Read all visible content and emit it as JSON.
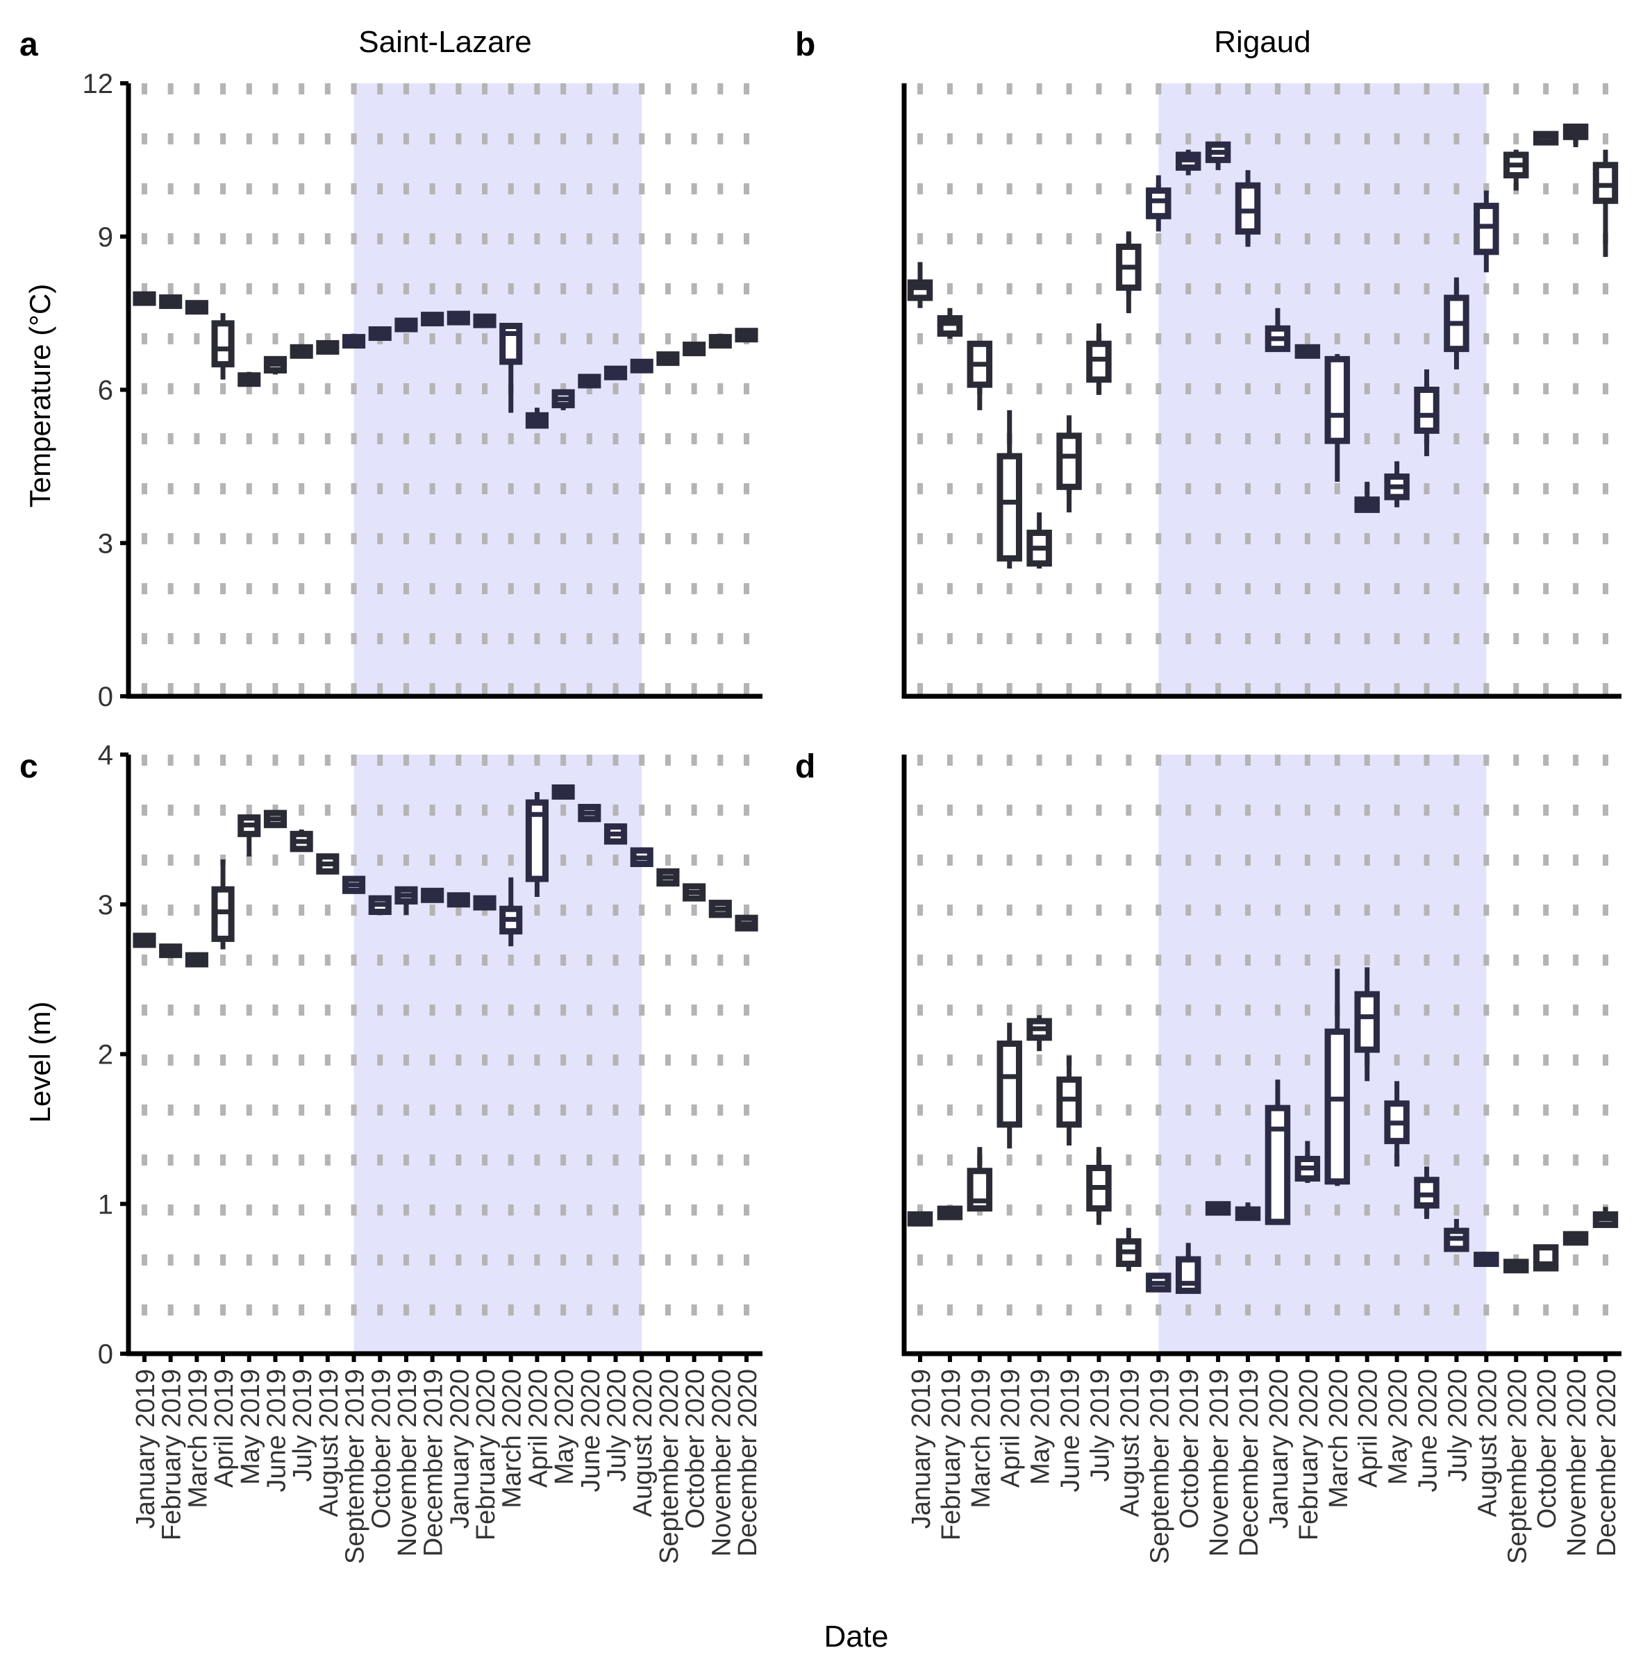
{
  "figure": {
    "xlabel": "Date",
    "shared_ylabels": {
      "top": "Temperature (°C)",
      "bottom": "Level (m)"
    }
  },
  "colors": {
    "shade": "#e3e4fb",
    "box": "#2b2b36",
    "box_shaded": "#2b2b45",
    "grid": "#b4b4b4",
    "axis": "#000000"
  },
  "chart_data": [
    {
      "panel": "a",
      "title": "Saint-Lazare",
      "type": "box",
      "ylabel": "Temperature (°C)",
      "ylim": [
        0,
        12
      ],
      "yticks": [
        0,
        3,
        6,
        9,
        12
      ],
      "shaded_range": [
        "September 2019",
        "August 2020"
      ],
      "categories": [
        "January 2019",
        "February 2019",
        "March 2019",
        "April 2019",
        "May 2019",
        "June 2019",
        "July 2019",
        "August 2019",
        "September 2019",
        "October 2019",
        "November 2019",
        "December 2019",
        "January 2020",
        "February 2020",
        "March 2020",
        "April 2020",
        "May 2020",
        "June 2020",
        "July 2020",
        "August 2020",
        "September 2020",
        "October 2020",
        "November 2020",
        "December 2020"
      ],
      "boxes": [
        {
          "min": 7.75,
          "q1": 7.75,
          "median": 7.78,
          "q3": 7.82,
          "max": 7.82
        },
        {
          "min": 7.7,
          "q1": 7.7,
          "median": 7.72,
          "q3": 7.75,
          "max": 7.75
        },
        {
          "min": 7.57,
          "q1": 7.57,
          "median": 7.6,
          "q3": 7.66,
          "max": 7.66
        },
        {
          "min": 6.2,
          "q1": 6.5,
          "median": 6.8,
          "q3": 7.3,
          "max": 7.5
        },
        {
          "min": 6.08,
          "q1": 6.12,
          "median": 6.2,
          "q3": 6.28,
          "max": 6.35
        },
        {
          "min": 6.3,
          "q1": 6.38,
          "median": 6.5,
          "q3": 6.6,
          "max": 6.65
        },
        {
          "min": 6.72,
          "q1": 6.72,
          "median": 6.75,
          "q3": 6.78,
          "max": 6.78
        },
        {
          "min": 6.8,
          "q1": 6.8,
          "median": 6.83,
          "q3": 6.86,
          "max": 6.86
        },
        {
          "min": 6.9,
          "q1": 6.9,
          "median": 6.95,
          "q3": 7.0,
          "max": 7.0
        },
        {
          "min": 7.05,
          "q1": 7.05,
          "median": 7.1,
          "q3": 7.15,
          "max": 7.15
        },
        {
          "min": 7.22,
          "q1": 7.22,
          "median": 7.27,
          "q3": 7.32,
          "max": 7.32
        },
        {
          "min": 7.35,
          "q1": 7.35,
          "median": 7.38,
          "q3": 7.42,
          "max": 7.42
        },
        {
          "min": 7.38,
          "q1": 7.38,
          "median": 7.4,
          "q3": 7.43,
          "max": 7.43
        },
        {
          "min": 7.32,
          "q1": 7.32,
          "median": 7.35,
          "q3": 7.38,
          "max": 7.38
        },
        {
          "min": 5.55,
          "q1": 6.55,
          "median": 7.1,
          "q3": 7.25,
          "max": 7.3
        },
        {
          "min": 5.25,
          "q1": 5.3,
          "median": 5.4,
          "q3": 5.5,
          "max": 5.65
        },
        {
          "min": 5.6,
          "q1": 5.7,
          "median": 5.82,
          "q3": 5.95,
          "max": 6.0
        },
        {
          "min": 6.12,
          "q1": 6.12,
          "median": 6.17,
          "q3": 6.22,
          "max": 6.22
        },
        {
          "min": 6.3,
          "q1": 6.3,
          "median": 6.33,
          "q3": 6.36,
          "max": 6.36
        },
        {
          "min": 6.43,
          "q1": 6.43,
          "median": 6.46,
          "q3": 6.5,
          "max": 6.5
        },
        {
          "min": 6.57,
          "q1": 6.57,
          "median": 6.6,
          "q3": 6.65,
          "max": 6.65
        },
        {
          "min": 6.75,
          "q1": 6.75,
          "median": 6.8,
          "q3": 6.85,
          "max": 6.85
        },
        {
          "min": 6.9,
          "q1": 6.9,
          "median": 6.95,
          "q3": 7.0,
          "max": 7.0
        },
        {
          "min": 7.02,
          "q1": 7.02,
          "median": 7.07,
          "q3": 7.12,
          "max": 7.12
        }
      ]
    },
    {
      "panel": "b",
      "title": "Rigaud",
      "type": "box",
      "ylabel": "",
      "ylim": [
        0,
        12
      ],
      "shaded_range": [
        "September 2019",
        "August 2020"
      ],
      "categories": [
        "January 2019",
        "February 2019",
        "March 2019",
        "April 2019",
        "May 2019",
        "June 2019",
        "July 2019",
        "August 2019",
        "September 2019",
        "October 2019",
        "November 2019",
        "December 2019",
        "January 2020",
        "February 2020",
        "March 2020",
        "April 2020",
        "May 2020",
        "June 2020",
        "July 2020",
        "August 2020",
        "September 2020",
        "October 2020",
        "November 2020",
        "December 2020"
      ],
      "boxes": [
        {
          "min": 7.6,
          "q1": 7.8,
          "median": 8.0,
          "q3": 8.1,
          "max": 8.5
        },
        {
          "min": 7.0,
          "q1": 7.1,
          "median": 7.3,
          "q3": 7.4,
          "max": 7.6
        },
        {
          "min": 5.6,
          "q1": 6.1,
          "median": 6.5,
          "q3": 6.9,
          "max": 6.9
        },
        {
          "min": 2.5,
          "q1": 2.7,
          "median": 3.8,
          "q3": 4.7,
          "max": 5.6
        },
        {
          "min": 2.5,
          "q1": 2.6,
          "median": 2.9,
          "q3": 3.2,
          "max": 3.6
        },
        {
          "min": 3.6,
          "q1": 4.1,
          "median": 4.7,
          "q3": 5.1,
          "max": 5.5
        },
        {
          "min": 5.9,
          "q1": 6.2,
          "median": 6.6,
          "q3": 6.9,
          "max": 7.3
        },
        {
          "min": 7.5,
          "q1": 8.0,
          "median": 8.4,
          "q3": 8.8,
          "max": 9.1
        },
        {
          "min": 9.1,
          "q1": 9.4,
          "median": 9.7,
          "q3": 9.9,
          "max": 10.2
        },
        {
          "min": 10.2,
          "q1": 10.35,
          "median": 10.5,
          "q3": 10.6,
          "max": 10.7
        },
        {
          "min": 10.3,
          "q1": 10.5,
          "median": 10.65,
          "q3": 10.8,
          "max": 10.8
        },
        {
          "min": 8.8,
          "q1": 9.1,
          "median": 9.5,
          "q3": 10.0,
          "max": 10.3
        },
        {
          "min": 6.8,
          "q1": 6.8,
          "median": 7.0,
          "q3": 7.2,
          "max": 7.6
        },
        {
          "min": 6.72,
          "q1": 6.72,
          "median": 6.75,
          "q3": 6.78,
          "max": 6.78
        },
        {
          "min": 4.2,
          "q1": 5.0,
          "median": 5.5,
          "q3": 6.6,
          "max": 6.7
        },
        {
          "min": 3.6,
          "q1": 3.65,
          "median": 3.75,
          "q3": 3.85,
          "max": 4.2
        },
        {
          "min": 3.7,
          "q1": 3.9,
          "median": 4.1,
          "q3": 4.3,
          "max": 4.6
        },
        {
          "min": 4.7,
          "q1": 5.2,
          "median": 5.5,
          "q3": 6.0,
          "max": 6.4
        },
        {
          "min": 6.4,
          "q1": 6.8,
          "median": 7.3,
          "q3": 7.8,
          "max": 8.2
        },
        {
          "min": 8.3,
          "q1": 8.7,
          "median": 9.2,
          "q3": 9.6,
          "max": 9.9
        },
        {
          "min": 9.9,
          "q1": 10.2,
          "median": 10.4,
          "q3": 10.6,
          "max": 10.7
        },
        {
          "min": 10.85,
          "q1": 10.85,
          "median": 10.95,
          "q3": 11.0,
          "max": 11.0
        },
        {
          "min": 10.75,
          "q1": 10.95,
          "median": 11.05,
          "q3": 11.15,
          "max": 11.2
        },
        {
          "min": 8.6,
          "q1": 9.7,
          "median": 10.0,
          "q3": 10.4,
          "max": 10.7
        }
      ]
    },
    {
      "panel": "c",
      "title": "",
      "type": "box",
      "ylabel": "Level (m)",
      "ylim": [
        0,
        4
      ],
      "yticks": [
        0,
        1,
        2,
        3,
        4
      ],
      "shaded_range": [
        "September 2019",
        "August 2020"
      ],
      "categories": [
        "January 2019",
        "February 2019",
        "March 2019",
        "April 2019",
        "May 2019",
        "June 2019",
        "July 2019",
        "August 2019",
        "September 2019",
        "October 2019",
        "November 2019",
        "December 2019",
        "January 2020",
        "February 2020",
        "March 2020",
        "April 2020",
        "May 2020",
        "June 2020",
        "July 2020",
        "August 2020",
        "September 2020",
        "October 2020",
        "November 2020",
        "December 2020"
      ],
      "boxes": [
        {
          "min": 2.73,
          "q1": 2.73,
          "median": 2.76,
          "q3": 2.79,
          "max": 2.79
        },
        {
          "min": 2.67,
          "q1": 2.67,
          "median": 2.69,
          "q3": 2.71,
          "max": 2.71
        },
        {
          "min": 2.6,
          "q1": 2.6,
          "median": 2.63,
          "q3": 2.66,
          "max": 2.66
        },
        {
          "min": 2.7,
          "q1": 2.77,
          "median": 2.95,
          "q3": 3.1,
          "max": 3.3
        },
        {
          "min": 3.32,
          "q1": 3.47,
          "median": 3.53,
          "q3": 3.58,
          "max": 3.6
        },
        {
          "min": 3.52,
          "q1": 3.53,
          "median": 3.57,
          "q3": 3.61,
          "max": 3.62
        },
        {
          "min": 3.37,
          "q1": 3.37,
          "median": 3.42,
          "q3": 3.47,
          "max": 3.5
        },
        {
          "min": 3.21,
          "q1": 3.22,
          "median": 3.27,
          "q3": 3.32,
          "max": 3.33
        },
        {
          "min": 3.08,
          "q1": 3.09,
          "median": 3.13,
          "q3": 3.17,
          "max": 3.18
        },
        {
          "min": 2.95,
          "q1": 2.95,
          "median": 3.0,
          "q3": 3.04,
          "max": 3.05
        },
        {
          "min": 2.93,
          "q1": 3.02,
          "median": 3.06,
          "q3": 3.1,
          "max": 3.1
        },
        {
          "min": 3.03,
          "q1": 3.03,
          "median": 3.06,
          "q3": 3.09,
          "max": 3.09
        },
        {
          "min": 3.0,
          "q1": 3.0,
          "median": 3.03,
          "q3": 3.06,
          "max": 3.06
        },
        {
          "min": 2.98,
          "q1": 2.98,
          "median": 3.01,
          "q3": 3.04,
          "max": 3.04
        },
        {
          "min": 2.72,
          "q1": 2.82,
          "median": 2.9,
          "q3": 2.97,
          "max": 3.18
        },
        {
          "min": 3.05,
          "q1": 3.17,
          "median": 3.6,
          "q3": 3.68,
          "max": 3.75
        },
        {
          "min": 3.72,
          "q1": 3.72,
          "median": 3.75,
          "q3": 3.78,
          "max": 3.78
        },
        {
          "min": 3.57,
          "q1": 3.57,
          "median": 3.61,
          "q3": 3.65,
          "max": 3.66
        },
        {
          "min": 3.4,
          "q1": 3.42,
          "median": 3.47,
          "q3": 3.52,
          "max": 3.54
        },
        {
          "min": 3.26,
          "q1": 3.27,
          "median": 3.31,
          "q3": 3.36,
          "max": 3.38
        },
        {
          "min": 3.13,
          "q1": 3.14,
          "median": 3.18,
          "q3": 3.22,
          "max": 3.22
        },
        {
          "min": 3.03,
          "q1": 3.04,
          "median": 3.08,
          "q3": 3.12,
          "max": 3.12
        },
        {
          "min": 2.92,
          "q1": 2.93,
          "median": 2.97,
          "q3": 3.01,
          "max": 3.01
        },
        {
          "min": 2.84,
          "q1": 2.84,
          "median": 2.87,
          "q3": 2.91,
          "max": 2.91
        }
      ]
    },
    {
      "panel": "d",
      "title": "",
      "type": "box",
      "ylabel": "",
      "ylim": [
        0,
        4
      ],
      "shaded_range": [
        "September 2019",
        "August 2020"
      ],
      "categories": [
        "January 2019",
        "February 2019",
        "March 2019",
        "April 2019",
        "May 2019",
        "June 2019",
        "July 2019",
        "August 2019",
        "September 2019",
        "October 2019",
        "November 2019",
        "December 2019",
        "January 2020",
        "February 2020",
        "March 2020",
        "April 2020",
        "May 2020",
        "June 2020",
        "July 2020",
        "August 2020",
        "September 2020",
        "October 2020",
        "November 2020",
        "December 2020"
      ],
      "boxes": [
        {
          "min": 0.87,
          "q1": 0.87,
          "median": 0.9,
          "q3": 0.93,
          "max": 0.93
        },
        {
          "min": 0.92,
          "q1": 0.92,
          "median": 0.94,
          "q3": 0.96,
          "max": 0.96
        },
        {
          "min": 0.95,
          "q1": 0.97,
          "median": 1.02,
          "q3": 1.22,
          "max": 1.38
        },
        {
          "min": 1.37,
          "q1": 1.53,
          "median": 1.85,
          "q3": 2.07,
          "max": 2.21
        },
        {
          "min": 2.02,
          "q1": 2.11,
          "median": 2.17,
          "q3": 2.22,
          "max": 2.26
        },
        {
          "min": 1.39,
          "q1": 1.53,
          "median": 1.7,
          "q3": 1.83,
          "max": 1.99
        },
        {
          "min": 0.86,
          "q1": 0.97,
          "median": 1.11,
          "q3": 1.24,
          "max": 1.38
        },
        {
          "min": 0.55,
          "q1": 0.6,
          "median": 0.68,
          "q3": 0.75,
          "max": 0.84
        },
        {
          "min": 0.42,
          "q1": 0.43,
          "median": 0.47,
          "q3": 0.52,
          "max": 0.54
        },
        {
          "min": 0.41,
          "q1": 0.42,
          "median": 0.47,
          "q3": 0.63,
          "max": 0.74
        },
        {
          "min": 0.93,
          "q1": 0.95,
          "median": 0.97,
          "q3": 0.99,
          "max": 1.01
        },
        {
          "min": 0.9,
          "q1": 0.91,
          "median": 0.93,
          "q3": 0.96,
          "max": 1.01
        },
        {
          "min": 0.86,
          "q1": 0.88,
          "median": 1.5,
          "q3": 1.64,
          "max": 1.83
        },
        {
          "min": 1.14,
          "q1": 1.17,
          "median": 1.24,
          "q3": 1.3,
          "max": 1.42
        },
        {
          "min": 1.12,
          "q1": 1.15,
          "median": 1.7,
          "q3": 2.15,
          "max": 2.57
        },
        {
          "min": 1.82,
          "q1": 2.03,
          "median": 2.25,
          "q3": 2.4,
          "max": 2.58
        },
        {
          "min": 1.25,
          "q1": 1.42,
          "median": 1.54,
          "q3": 1.67,
          "max": 1.82
        },
        {
          "min": 0.9,
          "q1": 0.99,
          "median": 1.06,
          "q3": 1.16,
          "max": 1.25
        },
        {
          "min": 0.68,
          "q1": 0.7,
          "median": 0.77,
          "q3": 0.82,
          "max": 0.9
        },
        {
          "min": 0.6,
          "q1": 0.6,
          "median": 0.63,
          "q3": 0.66,
          "max": 0.66
        },
        {
          "min": 0.55,
          "q1": 0.56,
          "median": 0.58,
          "q3": 0.61,
          "max": 0.62
        },
        {
          "min": 0.56,
          "q1": 0.57,
          "median": 0.6,
          "q3": 0.71,
          "max": 0.72
        },
        {
          "min": 0.75,
          "q1": 0.75,
          "median": 0.77,
          "q3": 0.79,
          "max": 0.79
        },
        {
          "min": 0.85,
          "q1": 0.86,
          "median": 0.9,
          "q3": 0.93,
          "max": 0.98
        }
      ]
    }
  ]
}
